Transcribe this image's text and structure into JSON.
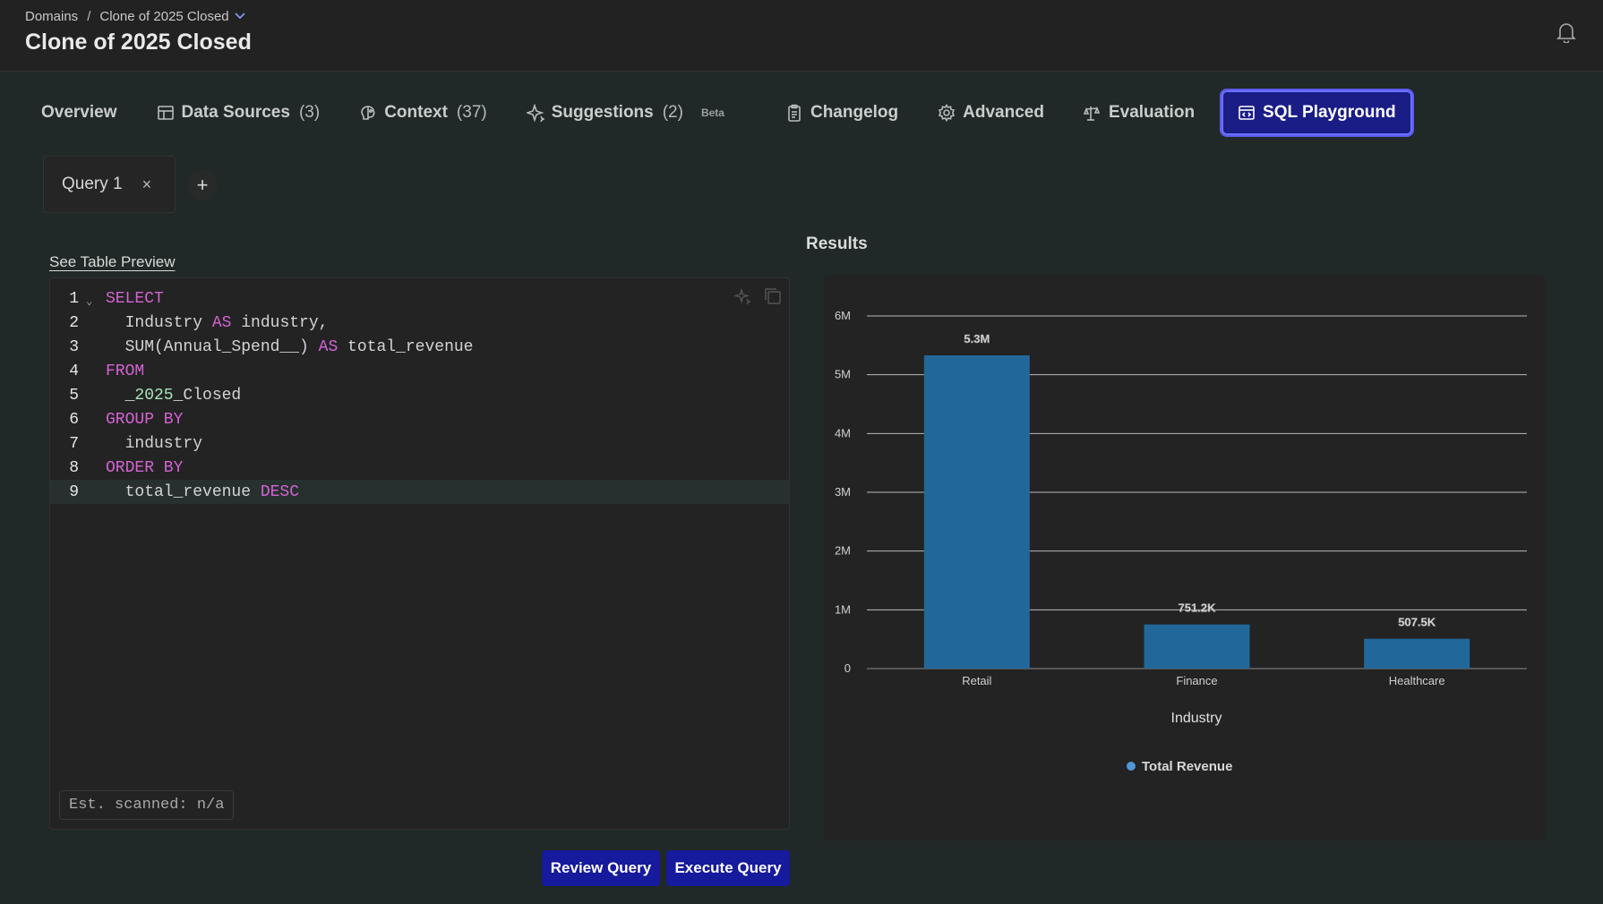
{
  "breadcrumb": {
    "root": "Domains",
    "separator": "/",
    "current": "Clone of 2025 Closed"
  },
  "page": {
    "title": "Clone of 2025 Closed"
  },
  "tabs": [
    {
      "label": "Overview",
      "count": "",
      "badge": "",
      "icon": "none"
    },
    {
      "label": "Data Sources",
      "count": "(3)",
      "badge": "",
      "icon": "table-icon"
    },
    {
      "label": "Context",
      "count": "(37)",
      "badge": "",
      "icon": "brain-icon"
    },
    {
      "label": "Suggestions",
      "count": "(2)",
      "badge": "Beta",
      "icon": "sparkle-icon"
    },
    {
      "label": "Changelog",
      "count": "",
      "badge": "",
      "icon": "clipboard-icon"
    },
    {
      "label": "Advanced",
      "count": "",
      "badge": "",
      "icon": "gear-icon"
    },
    {
      "label": "Evaluation",
      "count": "",
      "badge": "",
      "icon": "scale-icon"
    },
    {
      "label": "SQL Playground",
      "count": "",
      "badge": "",
      "icon": "code-window-icon",
      "active": true
    }
  ],
  "query_tabs": [
    {
      "label": "Query 1",
      "close": "×"
    }
  ],
  "add_tab_label": "+",
  "editor": {
    "preview_link": "See Table Preview",
    "lines": [
      {
        "n": "1",
        "fold": "⌄",
        "tokens": [
          {
            "t": "SELECT",
            "c": "kw"
          }
        ]
      },
      {
        "n": "2",
        "tokens": [
          {
            "t": "  Industry "
          },
          {
            "t": "AS",
            "c": "kw"
          },
          {
            "t": " industry,"
          }
        ]
      },
      {
        "n": "3",
        "tokens": [
          {
            "t": "  SUM(Annual_Spend__) "
          },
          {
            "t": "AS",
            "c": "kw"
          },
          {
            "t": " total_revenue"
          }
        ]
      },
      {
        "n": "4",
        "tokens": [
          {
            "t": "FROM",
            "c": "kw"
          }
        ]
      },
      {
        "n": "5",
        "tokens": [
          {
            "t": "  _"
          },
          {
            "t": "2025",
            "c": "num"
          },
          {
            "t": "_Closed"
          }
        ]
      },
      {
        "n": "6",
        "tokens": [
          {
            "t": "GROUP BY",
            "c": "kw"
          }
        ]
      },
      {
        "n": "7",
        "tokens": [
          {
            "t": "  industry"
          }
        ]
      },
      {
        "n": "8",
        "tokens": [
          {
            "t": "ORDER BY",
            "c": "kw"
          }
        ]
      },
      {
        "n": "9",
        "current": true,
        "tokens": [
          {
            "t": "  total_revenue "
          },
          {
            "t": "DESC",
            "c": "kw"
          }
        ]
      }
    ],
    "scanned": "Est. scanned: n/a"
  },
  "buttons": {
    "review": "Review Query",
    "execute": "Execute Query"
  },
  "results": {
    "title": "Results"
  },
  "chart_data": {
    "type": "bar",
    "categories": [
      "Retail",
      "Finance",
      "Healthcare"
    ],
    "series": [
      {
        "name": "Total Revenue",
        "values": [
          5330000,
          751200,
          507500
        ],
        "labels": [
          "5.3M",
          "751.2K",
          "507.5K"
        ]
      }
    ],
    "xlabel": "Industry",
    "ylabel": "",
    "ylim": [
      0,
      6000000
    ],
    "yticks": [
      "0",
      "1M",
      "2M",
      "3M",
      "4M",
      "5M",
      "6M"
    ],
    "grid": true,
    "legend_position": "bottom-center",
    "bar_color": "#22679a",
    "legend_dot_color": "#4e97d8"
  }
}
